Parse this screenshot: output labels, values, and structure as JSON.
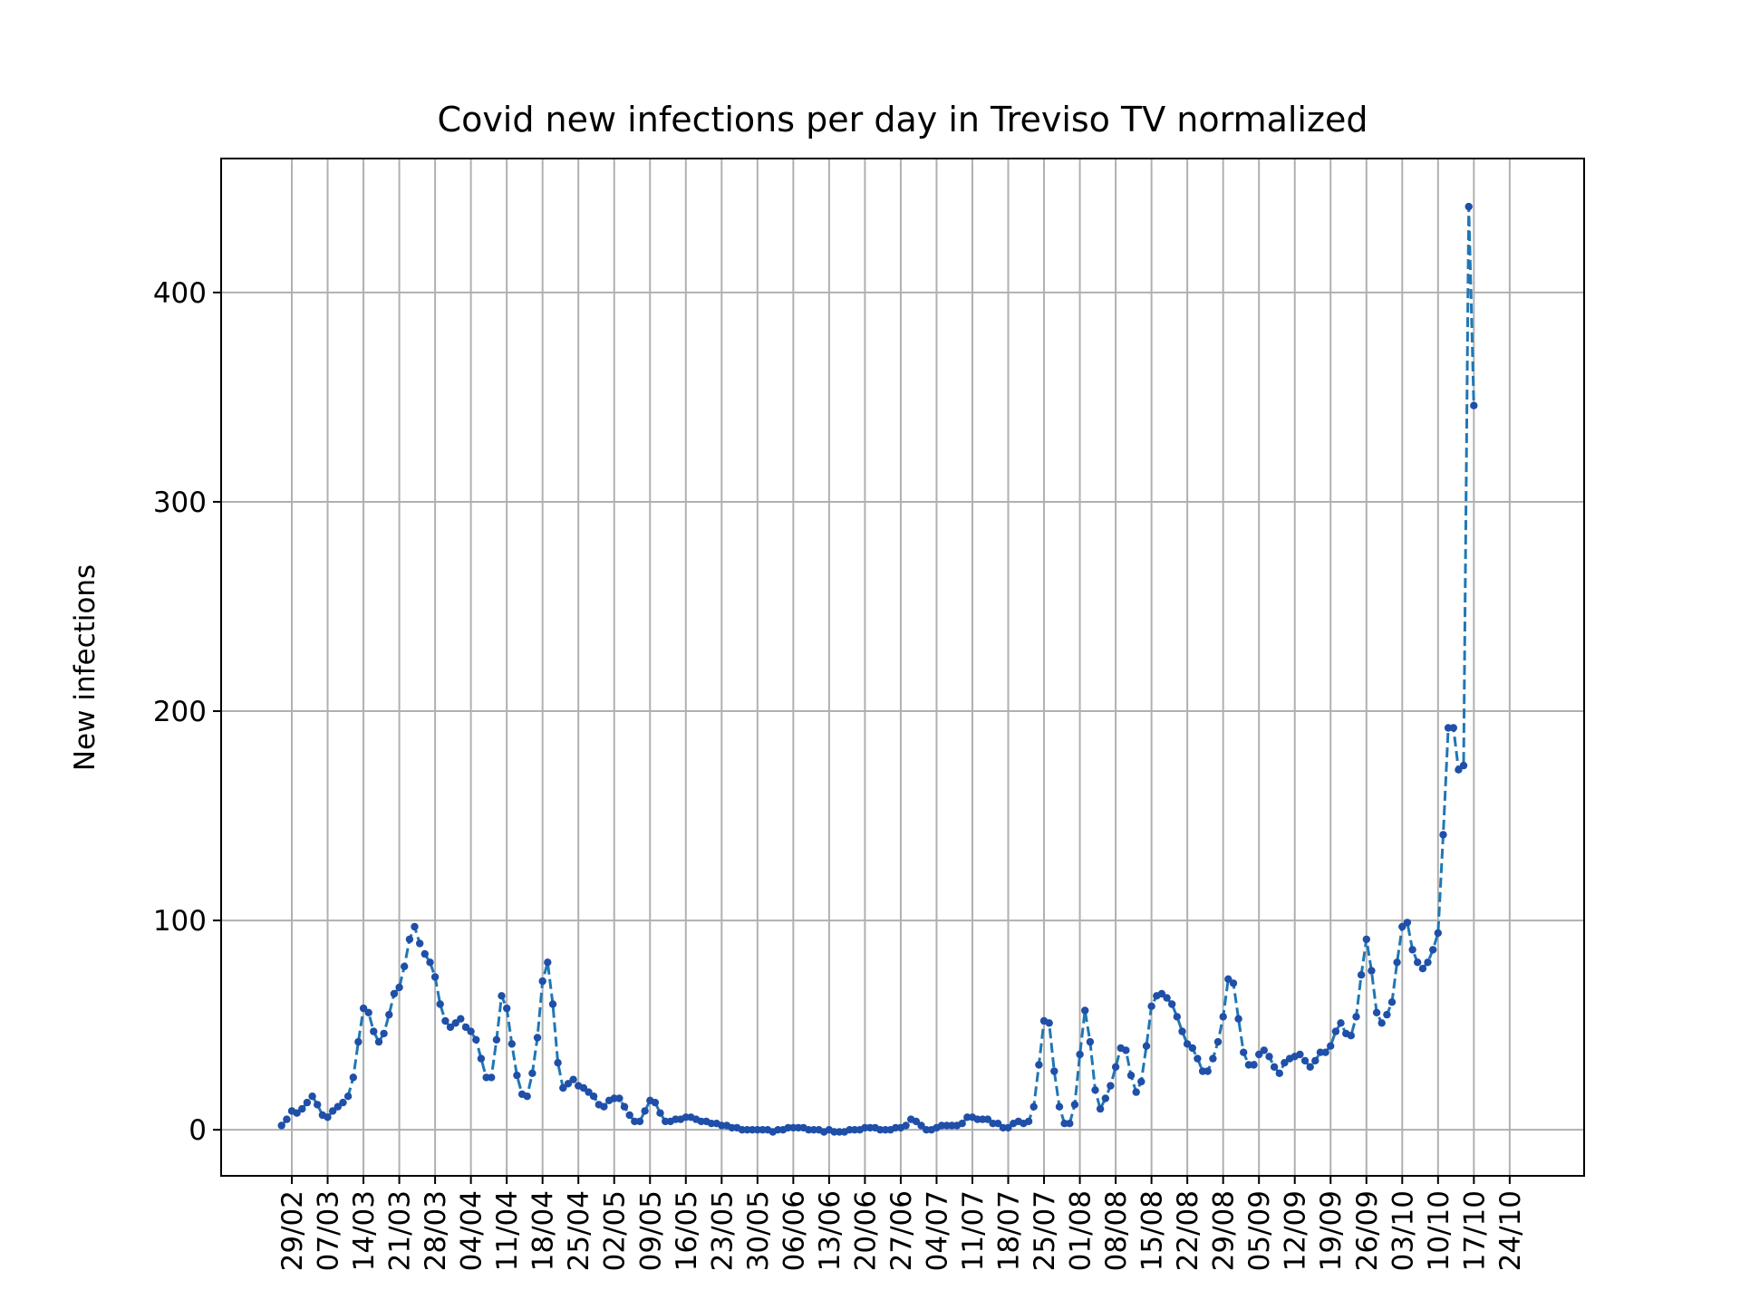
{
  "chart_data": {
    "type": "line",
    "title": "Covid new infections per day in Treviso TV normalized",
    "xlabel": "",
    "ylabel": "New infections",
    "ylim": [
      -22,
      464
    ],
    "yticks": [
      0,
      100,
      200,
      300,
      400
    ],
    "xtick_labels": [
      "29/02",
      "07/03",
      "14/03",
      "21/03",
      "28/03",
      "04/04",
      "11/04",
      "18/04",
      "25/04",
      "02/05",
      "09/05",
      "16/05",
      "23/05",
      "30/05",
      "06/06",
      "13/06",
      "20/06",
      "27/06",
      "04/07",
      "11/07",
      "18/07",
      "25/07",
      "01/08",
      "08/08",
      "15/08",
      "22/08",
      "29/08",
      "05/09",
      "12/09",
      "19/09",
      "26/09",
      "03/10",
      "10/10",
      "17/10",
      "24/10"
    ],
    "grid": true,
    "line_style": "dashed",
    "marker": "dot",
    "line_color": "#1f77b4",
    "series": [
      {
        "start_date": "2020-02-27",
        "values": [
          2,
          5,
          9,
          8,
          10,
          13,
          16,
          12,
          7,
          6,
          9,
          11,
          13,
          16,
          25,
          42,
          58,
          56,
          47,
          42,
          46,
          55,
          65,
          68,
          78,
          91,
          97,
          89,
          84,
          80,
          73,
          60,
          52,
          49,
          51,
          53,
          49,
          47,
          43,
          34,
          25,
          25,
          43,
          64,
          58,
          41,
          26,
          17,
          16,
          27,
          44,
          71,
          80,
          60,
          32,
          20,
          22,
          24,
          21,
          20,
          18,
          16,
          12,
          11,
          14,
          15,
          15,
          11,
          7,
          4,
          4,
          9,
          14,
          13,
          8,
          4,
          4,
          5,
          5,
          6,
          6,
          5,
          4,
          4,
          3,
          3,
          2,
          2,
          1,
          1,
          0,
          0,
          0,
          0,
          0,
          0,
          -1,
          0,
          0,
          1,
          1,
          1,
          1,
          0,
          0,
          0,
          -1,
          0,
          -1,
          -1,
          -1,
          0,
          0,
          0,
          1,
          1,
          1,
          0,
          0,
          0,
          1,
          1,
          2,
          5,
          4,
          2,
          0,
          0,
          1,
          2,
          2,
          2,
          2,
          3,
          6,
          6,
          5,
          5,
          5,
          3,
          3,
          1,
          1,
          3,
          4,
          3,
          4,
          11,
          31,
          52,
          51,
          28,
          11,
          3,
          3,
          12,
          36,
          57,
          42,
          19,
          10,
          15,
          21,
          30,
          39,
          38,
          26,
          18,
          23,
          40,
          59,
          64,
          65,
          63,
          60,
          54,
          47,
          41,
          39,
          34,
          28,
          28,
          34,
          42,
          54,
          72,
          70,
          53,
          37,
          31,
          31,
          36,
          38,
          35,
          30,
          27,
          32,
          34,
          35,
          36,
          33,
          30,
          33,
          37,
          37,
          40,
          47,
          51,
          46,
          45,
          54,
          74,
          91,
          76,
          56,
          51,
          55,
          61,
          80,
          97,
          99,
          86,
          80,
          77,
          80,
          86,
          94,
          141,
          192,
          192,
          172,
          174,
          441,
          346
        ]
      }
    ]
  }
}
